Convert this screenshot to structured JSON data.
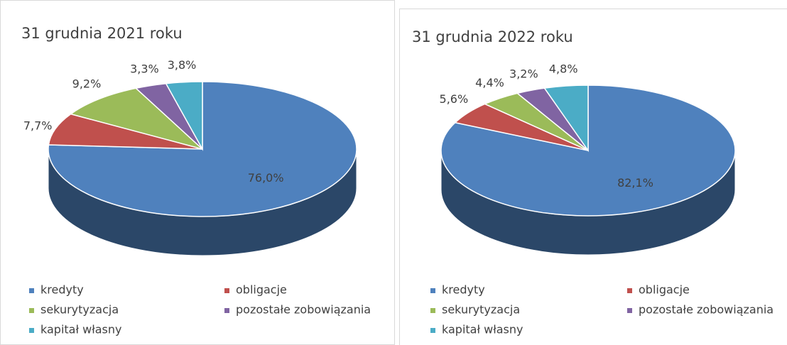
{
  "chart_data": [
    {
      "type": "pie",
      "title": "31 grudnia 2021 roku",
      "categories": [
        "kredyty",
        "obligacje",
        "sekurytyzacja",
        "pozostałe zobowiązania",
        "kapitał własny"
      ],
      "values": [
        76.0,
        7.7,
        9.2,
        3.3,
        3.8
      ],
      "value_labels": [
        "76,0%",
        "7,7%",
        "9,2%",
        "3,3%",
        "3,8%"
      ],
      "colors": [
        "#4f81bd",
        "#c0504d",
        "#9bbb59",
        "#8064a2",
        "#4bacc6"
      ]
    },
    {
      "type": "pie",
      "title": "31 grudnia 2022 roku",
      "categories": [
        "kredyty",
        "obligacje",
        "sekurytyzacja",
        "pozostałe zobowiązania",
        "kapitał własny"
      ],
      "values": [
        82.1,
        5.6,
        4.4,
        3.2,
        4.8
      ],
      "value_labels": [
        "82,1%",
        "5,6%",
        "4,4%",
        "3,2%",
        "4,8%"
      ],
      "colors": [
        "#4f81bd",
        "#c0504d",
        "#9bbb59",
        "#8064a2",
        "#4bacc6"
      ]
    }
  ]
}
